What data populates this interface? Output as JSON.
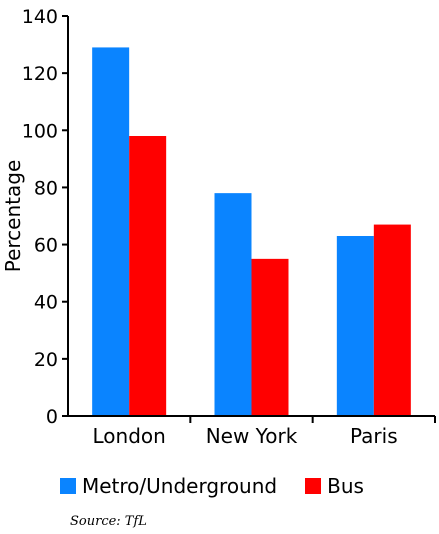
{
  "chart_data": {
    "type": "bar",
    "categories": [
      "London",
      "New York",
      "Paris"
    ],
    "series": [
      {
        "name": "Metro/Underground",
        "values": [
          129,
          78,
          63
        ],
        "color": "#0a84ff"
      },
      {
        "name": "Bus",
        "values": [
          98,
          55,
          67
        ],
        "color": "#ff0000"
      }
    ],
    "ylabel": "Percentage",
    "ylim": [
      0,
      140
    ],
    "yticks": [
      0,
      20,
      40,
      60,
      80,
      100,
      120,
      140
    ],
    "grid": false,
    "legend": "bottom"
  },
  "source": "Source: TfL"
}
